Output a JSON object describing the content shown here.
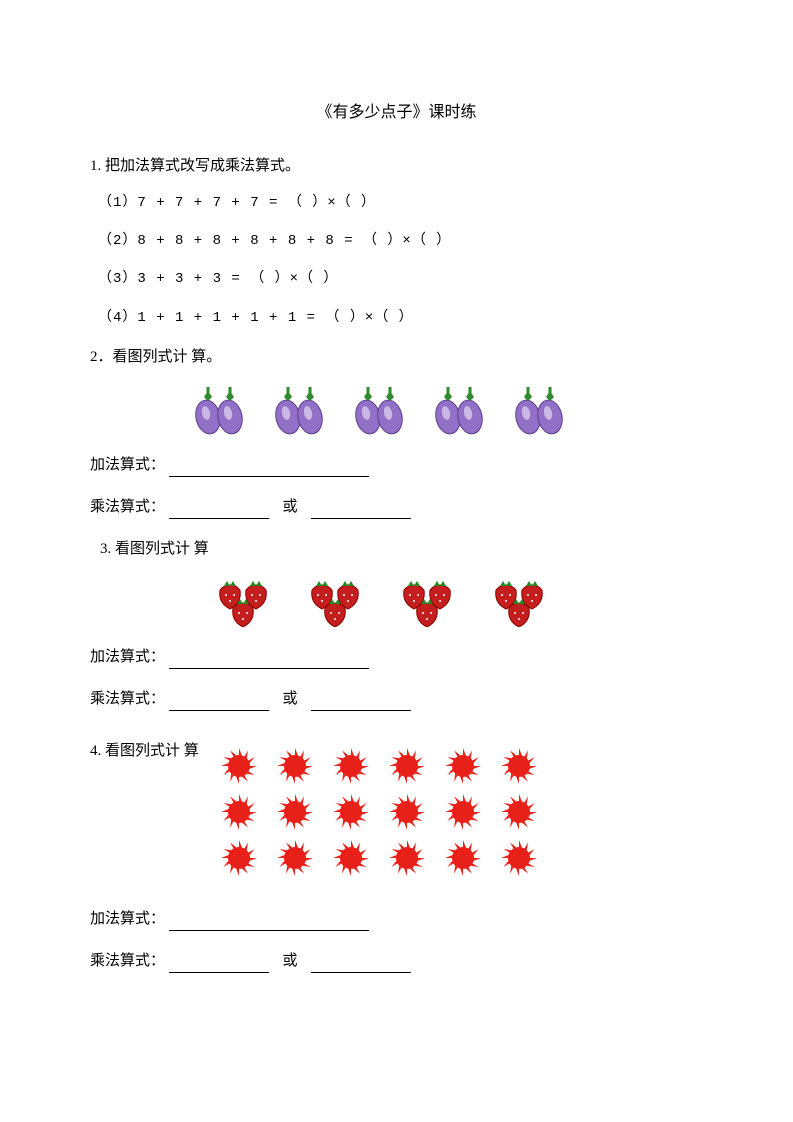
{
  "title": "《有多少点子》课时练",
  "q1": {
    "heading": "1.  把加法算式改写成乘法算式。",
    "items": [
      "（1）7 + 7 + 7 + 7 = （    ）×（    ）",
      "（2）8 + 8 + 8 + 8 + 8 + 8 = （    ）×（    ）",
      "（3）3 + 3 + 3 = （    ）×（    ）",
      "（4）1 + 1 + 1 + 1 + 1 = （    ）×（    ）"
    ]
  },
  "q2": {
    "heading": "2．看图列式计 算。",
    "eggplant_groups": 5,
    "eggplant_color": "#9370c8",
    "eggplant_dark": "#5a3d8a",
    "leaf_color": "#2d8b2d",
    "addition_label": "加法算式：",
    "mult_label": "乘法算式：",
    "or_text": "或"
  },
  "q3": {
    "heading": "3. 看图列式计 算",
    "strawberry_groups": 4,
    "strawberry_color": "#c41e1e",
    "strawberry_dark": "#8b0000",
    "leaf_color": "#228b22",
    "addition_label": "加法算式：",
    "mult_label": "乘法算式：",
    "or_text": "或"
  },
  "q4": {
    "heading": "4. 看图列式计 算",
    "rows": 3,
    "cols": 6,
    "sun_color": "#e8201a",
    "addition_label": "加法算式：",
    "mult_label": "乘法算式：",
    "or_text": "或"
  }
}
